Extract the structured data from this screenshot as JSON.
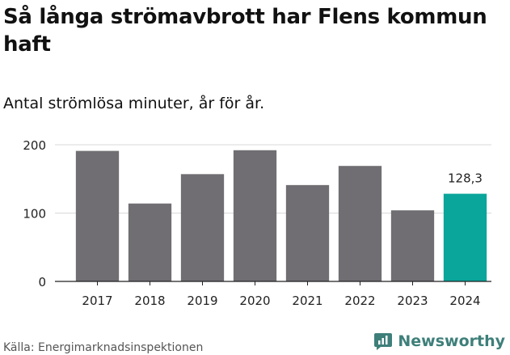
{
  "title": "Så långa strömavbrott har Flens kommun haft",
  "subtitle": "Antal strömlösa minuter, år för år.",
  "source": "Källa: Energimarknadsinspektionen",
  "brand": {
    "name": "Newsworthy",
    "color": "#3e7f7a",
    "icon": "newsworthy-logo-icon"
  },
  "colors": {
    "bar": "#706e72",
    "highlight": "#0aa59b",
    "grid": "#d9d9d9",
    "axis": "#222222"
  },
  "chart_data": {
    "type": "bar",
    "title": "Så långa strömavbrott har Flens kommun haft",
    "subtitle": "Antal strömlösa minuter, år för år.",
    "xlabel": "",
    "ylabel": "",
    "categories": [
      "2017",
      "2018",
      "2019",
      "2020",
      "2021",
      "2022",
      "2023",
      "2024"
    ],
    "values": [
      191,
      114,
      157,
      192,
      141,
      169,
      104,
      128.3
    ],
    "highlight_index": 7,
    "data_labels": [
      {
        "index": 7,
        "text": "128,3"
      }
    ],
    "ylim": [
      0,
      200
    ],
    "yticks": [
      0,
      100,
      200
    ],
    "grid": true,
    "legend": "none"
  }
}
